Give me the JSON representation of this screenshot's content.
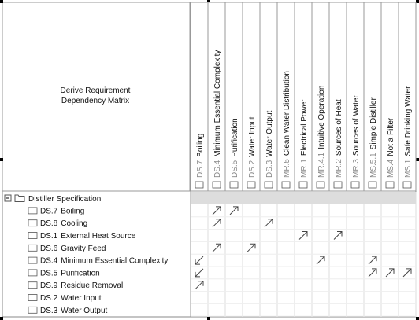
{
  "header": {
    "title": "Derive Requirement\nDependency Matrix"
  },
  "columns": [
    {
      "id": "DS.7",
      "name": "Boiling"
    },
    {
      "id": "DS.4",
      "name": "Minimum Essential Complexity"
    },
    {
      "id": "DS.5",
      "name": "Purification"
    },
    {
      "id": "DS.2",
      "name": "Water Input"
    },
    {
      "id": "DS.3",
      "name": "Water Output"
    },
    {
      "id": "MR.5",
      "name": "Clean Water Distribution"
    },
    {
      "id": "MR.1",
      "name": "Electrical Power"
    },
    {
      "id": "MR.4.1",
      "name": "Intuitive Operation"
    },
    {
      "id": "MR.2",
      "name": "Sources of Heat"
    },
    {
      "id": "MR.3",
      "name": "Sources of Water"
    },
    {
      "id": "MS.5.1",
      "name": "Simple Distiller"
    },
    {
      "id": "MS.4",
      "name": "Not a Filter"
    },
    {
      "id": "MS.1",
      "name": "Safe Drinking Water"
    }
  ],
  "group": {
    "label": "Distiller Specification"
  },
  "rows": [
    {
      "id": "DS.7",
      "name": "Boiling",
      "arrows": [
        {
          "column": "DS.4",
          "direction": "out"
        },
        {
          "column": "DS.5",
          "direction": "out"
        }
      ]
    },
    {
      "id": "DS.8",
      "name": "Cooling",
      "arrows": [
        {
          "column": "DS.4",
          "direction": "out"
        },
        {
          "column": "DS.3",
          "direction": "out"
        }
      ]
    },
    {
      "id": "DS.1",
      "name": "External Heat Source",
      "arrows": [
        {
          "column": "MR.1",
          "direction": "out"
        },
        {
          "column": "MR.2",
          "direction": "out"
        }
      ]
    },
    {
      "id": "DS.6",
      "name": "Gravity Feed",
      "arrows": [
        {
          "column": "DS.4",
          "direction": "out"
        },
        {
          "column": "DS.2",
          "direction": "out"
        }
      ]
    },
    {
      "id": "DS.4",
      "name": "Minimum Essential Complexity",
      "arrows": [
        {
          "column": "DS.7",
          "direction": "in"
        },
        {
          "column": "MR.4.1",
          "direction": "out"
        },
        {
          "column": "MS.5.1",
          "direction": "out"
        }
      ]
    },
    {
      "id": "DS.5",
      "name": "Purification",
      "arrows": [
        {
          "column": "DS.7",
          "direction": "in"
        },
        {
          "column": "MS.5.1",
          "direction": "out"
        },
        {
          "column": "MS.4",
          "direction": "out"
        },
        {
          "column": "MS.1",
          "direction": "out"
        }
      ]
    },
    {
      "id": "DS.9",
      "name": "Residue Removal",
      "arrows": [
        {
          "column": "DS.7",
          "direction": "out"
        }
      ]
    },
    {
      "id": "DS.2",
      "name": "Water Input",
      "arrows": []
    },
    {
      "id": "DS.3",
      "name": "Water Output",
      "arrows": []
    }
  ]
}
